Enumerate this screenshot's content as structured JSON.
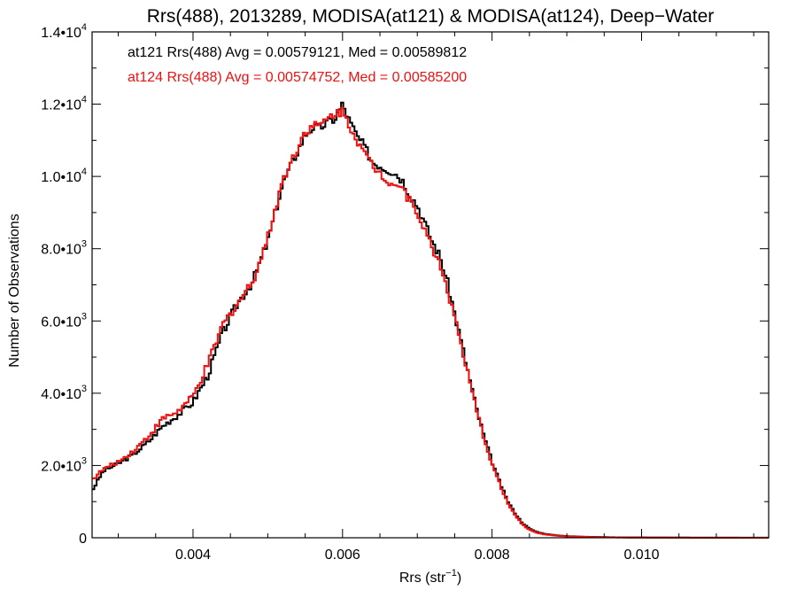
{
  "colors": {
    "at121": "#000000",
    "at124": "#ee1111"
  },
  "chart_data": {
    "type": "line",
    "title": "Rrs(488), 2013289, MODISA(at121) & MODISA(at124), Deep−Water",
    "xlabel_base": "Rrs (str",
    "xlabel_sup": "−1",
    "xlabel_close": ")",
    "ylabel": "Number of Observations",
    "xlim": [
      0.00265,
      0.0117
    ],
    "ylim": [
      0,
      14000
    ],
    "x_ticks": [
      {
        "value": 0.004,
        "label": "0.004"
      },
      {
        "value": 0.006,
        "label": "0.006"
      },
      {
        "value": 0.008,
        "label": "0.008"
      },
      {
        "value": 0.01,
        "label": "0.010"
      }
    ],
    "x_minor_ticks": [
      0.003,
      0.0035,
      0.0045,
      0.005,
      0.0055,
      0.0065,
      0.007,
      0.0075,
      0.0085,
      0.009,
      0.0095,
      0.0105,
      0.011,
      0.0115
    ],
    "y_ticks": [
      {
        "value": 0,
        "base": "0",
        "exp": ""
      },
      {
        "value": 2000,
        "base": "2.0•10",
        "exp": "3"
      },
      {
        "value": 4000,
        "base": "4.0•10",
        "exp": "3"
      },
      {
        "value": 6000,
        "base": "6.0•10",
        "exp": "3"
      },
      {
        "value": 8000,
        "base": "8.0•10",
        "exp": "3"
      },
      {
        "value": 10000,
        "base": "1.0•10",
        "exp": "4"
      },
      {
        "value": 12000,
        "base": "1.2•10",
        "exp": "4"
      },
      {
        "value": 14000,
        "base": "1.4•10",
        "exp": "4"
      }
    ],
    "y_minor_ticks": [
      1000,
      3000,
      5000,
      7000,
      9000,
      11000,
      13000
    ],
    "annotations": [
      "at121 Rrs(488) Avg = 0.00579121, Med = 0.00589812",
      "at124 Rrs(488) Avg = 0.00574752, Med = 0.00585200"
    ],
    "bin_width": 3e-05,
    "series_style": "step",
    "x": [
      0.00265,
      0.0028,
      0.003,
      0.0032,
      0.0034,
      0.0036,
      0.0038,
      0.004,
      0.0042,
      0.0044,
      0.0046,
      0.0048,
      0.005,
      0.0052,
      0.0054,
      0.0055,
      0.0056,
      0.0057,
      0.0058,
      0.0059,
      0.006,
      0.0061,
      0.0062,
      0.0063,
      0.0064,
      0.0065,
      0.0066,
      0.0067,
      0.0068,
      0.0069,
      0.007,
      0.0071,
      0.0072,
      0.0073,
      0.0074,
      0.0075,
      0.0076,
      0.0077,
      0.0078,
      0.0079,
      0.008,
      0.0081,
      0.0082,
      0.0083,
      0.0084,
      0.0085,
      0.0086,
      0.0087,
      0.0088,
      0.0089,
      0.009,
      0.0092,
      0.0094,
      0.0096,
      0.0098,
      0.01,
      0.0105,
      0.011,
      0.0117
    ],
    "series": [
      {
        "color_key": "at121",
        "values": [
          1300,
          1850,
          2050,
          2300,
          2650,
          3100,
          3400,
          3750,
          4500,
          5700,
          6500,
          7100,
          8200,
          9800,
          10700,
          11150,
          11350,
          11350,
          11500,
          11600,
          12000,
          11500,
          11100,
          10800,
          10400,
          10300,
          10200,
          10100,
          9900,
          9500,
          9200,
          8700,
          8200,
          7800,
          7100,
          6200,
          5300,
          4400,
          3500,
          2750,
          2100,
          1550,
          1050,
          700,
          420,
          250,
          160,
          110,
          80,
          60,
          45,
          30,
          22,
          15,
          10,
          8,
          5,
          3,
          2
        ]
      },
      {
        "color_key": "at124",
        "values": [
          1600,
          1900,
          2100,
          2400,
          2800,
          3300,
          3500,
          3900,
          4800,
          5900,
          6500,
          7100,
          8300,
          9900,
          10800,
          11250,
          11400,
          11400,
          11600,
          11750,
          11800,
          11400,
          11000,
          10600,
          10300,
          10100,
          9900,
          9800,
          9700,
          9300,
          9050,
          8500,
          8000,
          7600,
          6900,
          6100,
          5200,
          4300,
          3450,
          2700,
          2050,
          1500,
          1000,
          650,
          380,
          220,
          140,
          95,
          70,
          50,
          38,
          26,
          18,
          12,
          8,
          6,
          4,
          2,
          1
        ]
      }
    ]
  }
}
